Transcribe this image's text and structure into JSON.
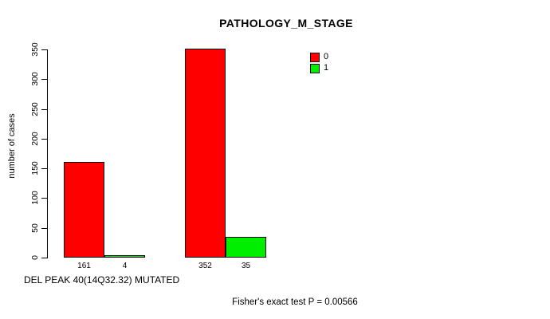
{
  "chart_data": {
    "type": "bar",
    "title": "PATHOLOGY_M_STAGE",
    "ylabel": "number of cases",
    "xlabel": "DEL PEAK 40(14Q32.32) MUTATED",
    "ylim": [
      0,
      350
    ],
    "yticks": [
      0,
      50,
      100,
      150,
      200,
      250,
      300,
      350
    ],
    "grid": false,
    "categories": [
      "group-1",
      "group-2"
    ],
    "series": [
      {
        "name": "0",
        "color": "#ff0000",
        "values": [
          161,
          352
        ]
      },
      {
        "name": "1",
        "color": "#00ee00",
        "values": [
          4,
          35
        ]
      }
    ],
    "groups": [
      {
        "bars": [
          {
            "series": "0",
            "value": 161,
            "label": "161"
          },
          {
            "series": "1",
            "value": 4,
            "label": "4"
          }
        ]
      },
      {
        "bars": [
          {
            "series": "0",
            "value": 352,
            "label": "352"
          },
          {
            "series": "1",
            "value": 35,
            "label": "35"
          }
        ]
      }
    ],
    "legend": {
      "position": "top-right",
      "entries": [
        {
          "label": "0",
          "color": "#ff0000"
        },
        {
          "label": "1",
          "color": "#00ee00"
        }
      ]
    },
    "annotation": "Fisher's exact test P = 0.00566"
  }
}
